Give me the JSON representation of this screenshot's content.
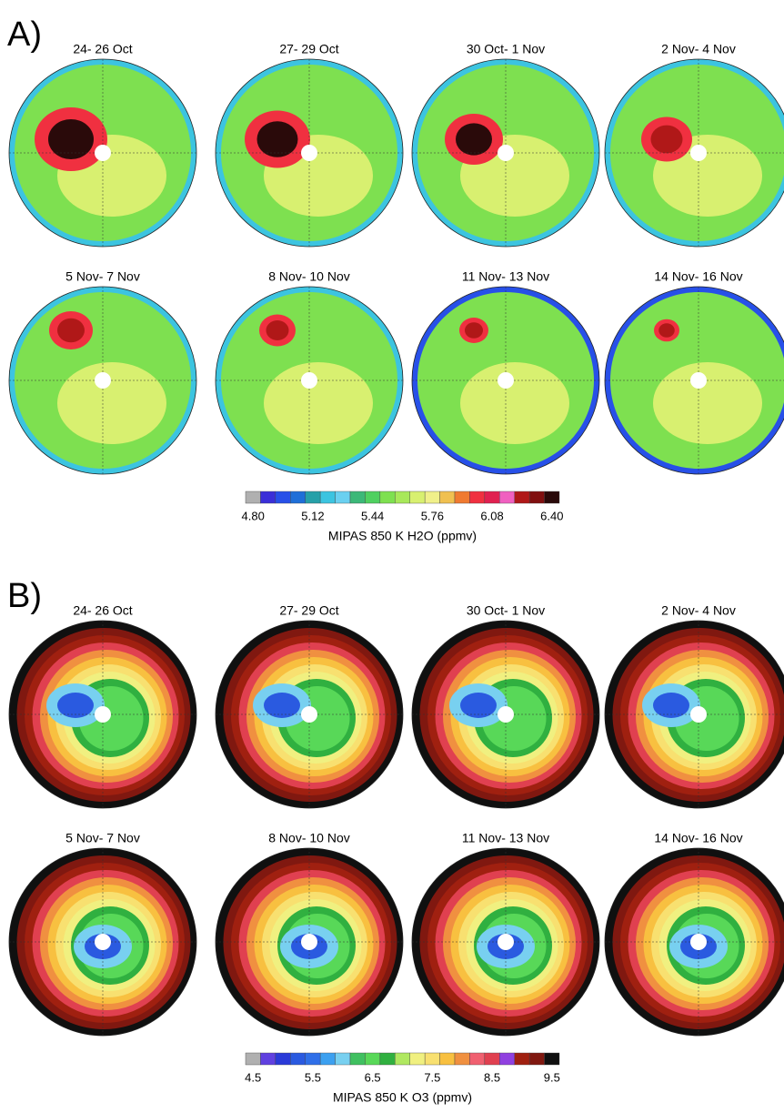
{
  "panels": [
    {
      "label": "A)",
      "maps": [
        "24- 26 Oct",
        "27- 29 Oct",
        "30 Oct- 1 Nov",
        "2 Nov- 4 Nov",
        "5 Nov- 7 Nov",
        "8 Nov- 10 Nov",
        "11 Nov- 13 Nov",
        "14 Nov- 16 Nov"
      ],
      "colorbar": {
        "title": "MIPAS 850 K H2O (ppmv)",
        "ticks": [
          "4.80",
          "5.12",
          "5.44",
          "5.76",
          "6.08",
          "6.40"
        ],
        "colors": [
          "#b0b0b0",
          "#3a2fd8",
          "#2750e8",
          "#1f6fd8",
          "#26a0a8",
          "#3cc4e0",
          "#6ad0f0",
          "#3cb878",
          "#4fd060",
          "#7ee050",
          "#a8e85a",
          "#d8f070",
          "#f0f08a",
          "#f0c050",
          "#f07a30",
          "#f03040",
          "#e02050",
          "#f060c0",
          "#b01818",
          "#801010",
          "#2a0a0a"
        ]
      }
    },
    {
      "label": "B)",
      "maps": [
        "24- 26 Oct",
        "27- 29 Oct",
        "30 Oct- 1 Nov",
        "2 Nov- 4 Nov",
        "5 Nov- 7 Nov",
        "8 Nov- 10 Nov",
        "11 Nov- 13 Nov",
        "14 Nov- 16 Nov"
      ],
      "colorbar": {
        "title": "MIPAS 850 K O3 (ppmv)",
        "ticks": [
          "4.5",
          "5.5",
          "6.5",
          "7.5",
          "8.5",
          "9.5"
        ],
        "colors": [
          "#b0b0b0",
          "#6040e0",
          "#2a3ad8",
          "#2a5ae0",
          "#2f6fe8",
          "#3ca0f0",
          "#78d0f0",
          "#40c060",
          "#58d858",
          "#30b040",
          "#b0e860",
          "#f0f080",
          "#f8e070",
          "#f8c040",
          "#f09040",
          "#f06070",
          "#e04050",
          "#9040e0",
          "#a02010",
          "#801810",
          "#101010"
        ]
      }
    }
  ]
}
